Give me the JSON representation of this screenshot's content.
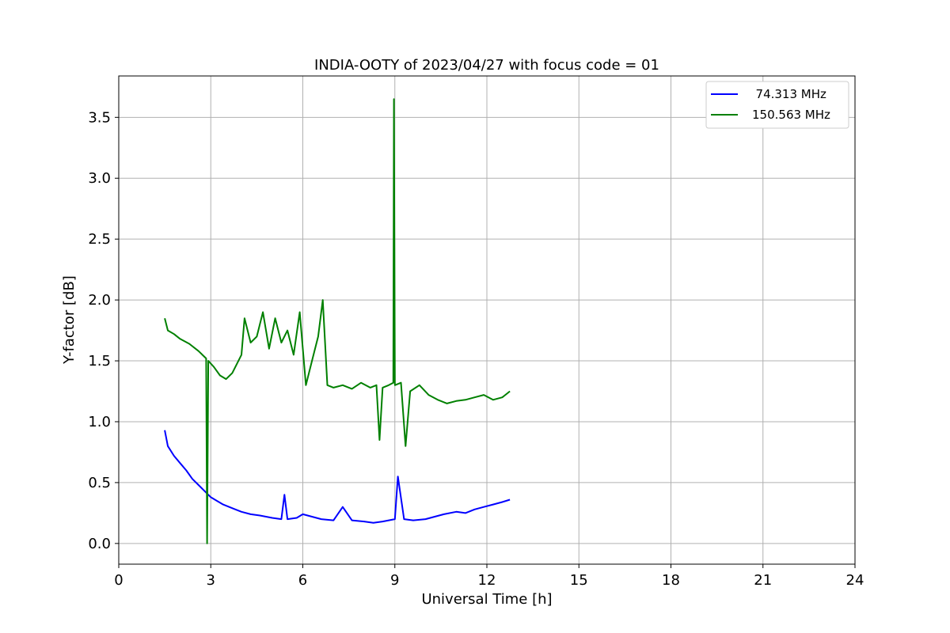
{
  "chart_data": {
    "type": "line",
    "title": "INDIA-OOTY of 2023/04/27 with focus code = 01",
    "xlabel": "Universal Time [h]",
    "ylabel": "Y-factor [dB]",
    "xlim": [
      0,
      24
    ],
    "ylim": [
      -0.17,
      3.84
    ],
    "xticks": [
      0,
      3,
      6,
      9,
      12,
      15,
      18,
      21,
      24
    ],
    "xtick_labels": [
      "0",
      "3",
      "6",
      "9",
      "12",
      "15",
      "18",
      "21",
      "24"
    ],
    "yticks": [
      0.0,
      0.5,
      1.0,
      1.5,
      2.0,
      2.5,
      3.0,
      3.5
    ],
    "ytick_labels": [
      "0.0",
      "0.5",
      "1.0",
      "1.5",
      "2.0",
      "2.5",
      "3.0",
      "3.5"
    ],
    "grid": true,
    "legend_position": "upper-right",
    "series": [
      {
        "name": "  74.313 MHz",
        "color": "#0000ff",
        "x": [
          1.5,
          1.6,
          1.8,
          2.0,
          2.2,
          2.4,
          2.6,
          2.8,
          3.0,
          3.2,
          3.4,
          3.6,
          3.8,
          4.0,
          4.3,
          4.6,
          5.0,
          5.3,
          5.4,
          5.5,
          5.8,
          6.0,
          6.3,
          6.6,
          7.0,
          7.3,
          7.6,
          8.0,
          8.3,
          8.6,
          9.0,
          9.1,
          9.3,
          9.6,
          10.0,
          10.3,
          10.6,
          11.0,
          11.3,
          11.6,
          11.9,
          12.2,
          12.5,
          12.75
        ],
        "y": [
          0.93,
          0.8,
          0.72,
          0.66,
          0.6,
          0.53,
          0.48,
          0.43,
          0.38,
          0.35,
          0.32,
          0.3,
          0.28,
          0.26,
          0.24,
          0.23,
          0.21,
          0.2,
          0.4,
          0.2,
          0.21,
          0.24,
          0.22,
          0.2,
          0.19,
          0.3,
          0.19,
          0.18,
          0.17,
          0.18,
          0.2,
          0.55,
          0.2,
          0.19,
          0.2,
          0.22,
          0.24,
          0.26,
          0.25,
          0.28,
          0.3,
          0.32,
          0.34,
          0.36
        ]
      },
      {
        "name": "150.563 MHz",
        "color": "#008000",
        "x": [
          1.5,
          1.6,
          1.8,
          2.0,
          2.3,
          2.6,
          2.85,
          2.88,
          2.92,
          3.1,
          3.3,
          3.5,
          3.7,
          4.0,
          4.1,
          4.3,
          4.5,
          4.7,
          4.9,
          5.1,
          5.3,
          5.5,
          5.7,
          5.9,
          6.1,
          6.3,
          6.5,
          6.65,
          6.8,
          7.0,
          7.3,
          7.6,
          7.9,
          8.2,
          8.4,
          8.5,
          8.6,
          8.8,
          8.95,
          8.97,
          9.0,
          9.2,
          9.35,
          9.5,
          9.8,
          10.1,
          10.4,
          10.7,
          11.0,
          11.3,
          11.6,
          11.9,
          12.2,
          12.5,
          12.75
        ],
        "y": [
          1.85,
          1.75,
          1.72,
          1.68,
          1.64,
          1.58,
          1.52,
          0.0,
          1.5,
          1.45,
          1.38,
          1.35,
          1.4,
          1.55,
          1.85,
          1.65,
          1.7,
          1.9,
          1.6,
          1.85,
          1.65,
          1.75,
          1.55,
          1.9,
          1.3,
          1.5,
          1.7,
          2.0,
          1.3,
          1.28,
          1.3,
          1.27,
          1.32,
          1.28,
          1.3,
          0.85,
          1.28,
          1.3,
          1.32,
          3.65,
          1.3,
          1.32,
          0.8,
          1.25,
          1.3,
          1.22,
          1.18,
          1.15,
          1.17,
          1.18,
          1.2,
          1.22,
          1.18,
          1.2,
          1.25
        ]
      }
    ]
  }
}
